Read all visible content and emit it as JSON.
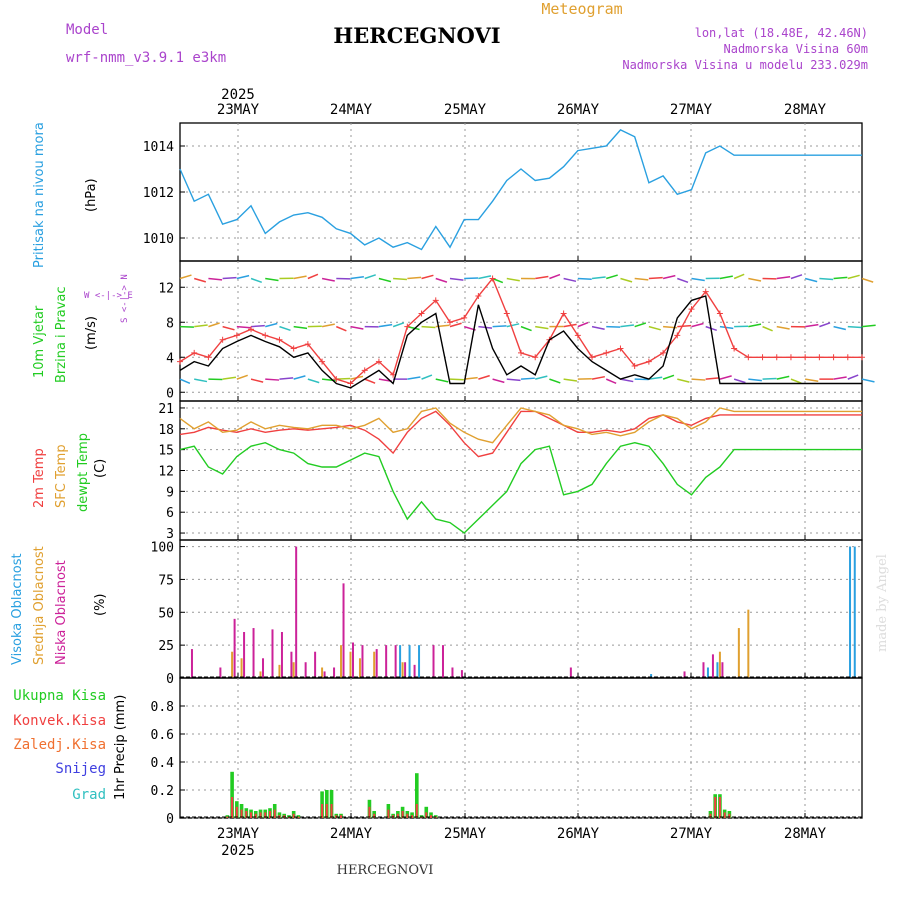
{
  "header": {
    "model_label": "Model",
    "model_name": "wrf-nmm_v3.9.1 e3km",
    "title": "HERCEGNOVI",
    "subtitle": "Meteogram",
    "lonlat": "lon,lat (18.48E, 42.46N)",
    "elevation": "Nadmorska Visina 60m",
    "model_elevation": "Nadmorska Visina u modelu 233.029m",
    "footer_title": "HERCEGNOVI",
    "watermark": "made by Angel"
  },
  "time_axis": {
    "year": "2025",
    "days": [
      "23MAY",
      "24MAY",
      "25MAY",
      "26MAY",
      "27MAY",
      "28MAY"
    ],
    "start_hour": 0,
    "end_hour": 144
  },
  "colors": {
    "pressure": "#2aa0e0",
    "wind_speed": "#f04040",
    "wind_gust": "#000000",
    "temp2m": "#f04040",
    "sfc_temp": "#e0a030",
    "dewpt": "#22cc22",
    "high_cloud": "#2aa0e0",
    "mid_cloud": "#e0a030",
    "low_cloud": "#cc2299",
    "total_precip": "#22cc22",
    "conv_precip": "#f04040",
    "frozen_precip": "#f07030",
    "snow": "#4040e0",
    "hail": "#30c0c0",
    "purple_text": "#aa44cc"
  },
  "chart_data": [
    {
      "type": "line",
      "id": "pressure",
      "label_left": "Pritisak na nivou mora",
      "unit": "(hPa)",
      "ylim": [
        1009,
        1015
      ],
      "yticks": [
        "1010",
        "1012",
        "1014"
      ],
      "x": [
        0,
        3,
        6,
        9,
        12,
        15,
        18,
        21,
        24,
        27,
        30,
        33,
        36,
        39,
        42,
        45,
        48,
        51,
        54,
        57,
        60,
        63,
        66,
        69,
        72,
        75,
        78,
        81,
        84,
        87,
        90,
        93,
        96,
        99,
        102,
        105,
        108,
        111,
        114,
        117,
        120,
        123,
        126,
        129,
        132,
        135,
        138,
        141,
        144
      ],
      "series": [
        {
          "name": "Pressure",
          "values": [
            1013.0,
            1011.6,
            1011.9,
            1010.6,
            1010.8,
            1011.4,
            1010.2,
            1010.7,
            1011.0,
            1011.1,
            1010.9,
            1010.4,
            1010.2,
            1009.7,
            1010.0,
            1009.6,
            1009.8,
            1009.5,
            1010.5,
            1009.6,
            1010.8,
            1010.8,
            1011.6,
            1012.5,
            1013.0,
            1012.5,
            1012.6,
            1013.1,
            1013.8,
            1013.9,
            1014.0,
            1014.7,
            1014.4,
            1012.4,
            1012.7,
            1011.9,
            1012.1,
            1013.7,
            1014.0,
            1013.6,
            1013.6,
            1013.6,
            1013.6,
            1013.6,
            1013.6,
            1013.6,
            1013.6,
            1013.6,
            1013.6
          ]
        }
      ]
    },
    {
      "type": "line",
      "id": "wind",
      "label_left": "10m Vjetar",
      "label_left2": "Brzina i Pravac",
      "unit": "(m/s)",
      "compass": "W <-|-> E",
      "compass_ns": "S <-|-> N",
      "ylim": [
        -1,
        15
      ],
      "yticks": [
        "0",
        "4",
        "8",
        "12"
      ],
      "x": [
        0,
        3,
        6,
        9,
        12,
        15,
        18,
        21,
        24,
        27,
        30,
        33,
        36,
        39,
        42,
        45,
        48,
        51,
        54,
        57,
        60,
        63,
        66,
        69,
        72,
        75,
        78,
        81,
        84,
        87,
        90,
        93,
        96,
        99,
        102,
        105,
        108,
        111,
        114,
        117,
        120,
        123,
        126,
        129,
        132,
        135,
        138,
        141,
        144
      ],
      "series": [
        {
          "name": "Wind speed",
          "values": [
            3.5,
            4.5,
            4.0,
            6.0,
            6.5,
            7.2,
            6.5,
            6.0,
            5.0,
            5.5,
            3.5,
            1.5,
            1.0,
            2.5,
            3.5,
            2.0,
            7.5,
            9.0,
            10.5,
            8.0,
            8.5,
            11.0,
            13.0,
            9.0,
            4.5,
            4.0,
            6.0,
            9.0,
            6.5,
            4.0,
            4.5,
            5.0,
            3.0,
            3.5,
            4.5,
            6.5,
            9.5,
            11.5,
            9.0,
            5.0,
            4.0,
            4.0,
            4.0,
            4.0,
            4.0,
            4.0,
            4.0,
            4.0,
            4.0
          ]
        },
        {
          "name": "Gust",
          "values": [
            2.5,
            3.5,
            3.0,
            5.0,
            5.8,
            6.5,
            5.8,
            5.2,
            4.0,
            4.5,
            2.5,
            1.0,
            0.5,
            1.5,
            2.5,
            1.0,
            6.5,
            8.0,
            9.0,
            1.0,
            1.0,
            10.0,
            5.0,
            2.0,
            3.0,
            2.0,
            6.0,
            7.0,
            5.0,
            3.5,
            2.5,
            1.5,
            2.0,
            1.5,
            3.0,
            8.5,
            10.5,
            11.0,
            1.0,
            1.0,
            1.0,
            1.0,
            1.0,
            1.0,
            1.0,
            1.0,
            1.0,
            1.0,
            1.0
          ]
        }
      ]
    },
    {
      "type": "line",
      "id": "temperature",
      "label_left": "2m Temp",
      "label_left2": "SFC Temp",
      "label_left3": "dewpt Temp",
      "unit": "(C)",
      "ylim": [
        2,
        22
      ],
      "yticks": [
        "3",
        "6",
        "9",
        "12",
        "15",
        "18",
        "21"
      ],
      "x": [
        0,
        3,
        6,
        9,
        12,
        15,
        18,
        21,
        24,
        27,
        30,
        33,
        36,
        39,
        42,
        45,
        48,
        51,
        54,
        57,
        60,
        63,
        66,
        69,
        72,
        75,
        78,
        81,
        84,
        87,
        90,
        93,
        96,
        99,
        102,
        105,
        108,
        111,
        114,
        117,
        120,
        123,
        126,
        129,
        132,
        135,
        138,
        141,
        144
      ],
      "series": [
        {
          "name": "2m Temp",
          "values": [
            17.2,
            17.5,
            18.2,
            17.8,
            17.5,
            18.0,
            17.5,
            17.8,
            18.0,
            17.8,
            18.0,
            18.2,
            18.5,
            17.8,
            16.5,
            14.5,
            17.5,
            19.5,
            20.5,
            18.5,
            16.0,
            14.0,
            14.5,
            17.5,
            20.5,
            20.5,
            19.5,
            18.5,
            17.5,
            17.5,
            17.8,
            17.5,
            18.0,
            19.5,
            20.0,
            19.0,
            18.5,
            19.5,
            20.0,
            20.0,
            20.0,
            20.0,
            20.0,
            20.0,
            20.0,
            20.0,
            20.0,
            20.0,
            20.0
          ]
        },
        {
          "name": "SFC Temp",
          "values": [
            19.5,
            18.0,
            19.0,
            17.5,
            17.8,
            19.0,
            18.0,
            18.5,
            18.2,
            18.0,
            18.5,
            18.5,
            18.0,
            18.5,
            19.5,
            17.5,
            18.0,
            20.5,
            21.0,
            18.8,
            17.5,
            16.5,
            16.0,
            18.5,
            21.0,
            20.5,
            20.0,
            18.5,
            18.0,
            17.2,
            17.5,
            17.0,
            17.5,
            19.0,
            20.0,
            19.5,
            18.0,
            19.0,
            21.0,
            20.5,
            20.5,
            20.5,
            20.5,
            20.5,
            20.5,
            20.5,
            20.5,
            20.5,
            20.5
          ]
        },
        {
          "name": "Dewpt Temp",
          "values": [
            15.0,
            15.5,
            12.5,
            11.5,
            14.0,
            15.5,
            16.0,
            15.0,
            14.5,
            13.0,
            12.5,
            12.5,
            13.5,
            14.5,
            14.0,
            9.0,
            5.0,
            7.5,
            5.0,
            4.5,
            3.0,
            5.0,
            7.0,
            9.0,
            13.0,
            15.0,
            15.5,
            8.5,
            9.0,
            10.0,
            13.0,
            15.5,
            16.0,
            15.5,
            13.0,
            10.0,
            8.5,
            11.0,
            12.5,
            15.0,
            15.0,
            15.0,
            15.0,
            15.0,
            15.0,
            15.0,
            15.0,
            15.0,
            15.0
          ]
        }
      ]
    },
    {
      "type": "bar",
      "id": "cloud",
      "label_left": "Visoka Oblacnost",
      "label_left2": "Srednja Oblacnost",
      "label_left3": "Niska Oblacnost",
      "unit": "(%)",
      "ylim": [
        0,
        105
      ],
      "yticks": [
        "0",
        "25",
        "50",
        "75",
        "100"
      ],
      "x": [
        2,
        6,
        8,
        11,
        13,
        15,
        17,
        19,
        21,
        23,
        24,
        26,
        28,
        30,
        32,
        34,
        36,
        38,
        41,
        43,
        45,
        47,
        49,
        51,
        53,
        55,
        57,
        59,
        61,
        63,
        66,
        69,
        72,
        76,
        79,
        82,
        85,
        88,
        91,
        94,
        97,
        100,
        103,
        106,
        108,
        110,
        112,
        114,
        116,
        118,
        120,
        122,
        124,
        126,
        128,
        130,
        132,
        134,
        136,
        138,
        140,
        142,
        143
      ],
      "series": [
        {
          "name": "Visoka Oblacnost",
          "values": [
            0,
            0,
            0,
            0,
            0,
            0,
            0,
            0,
            0,
            0,
            0,
            0,
            0,
            0,
            0,
            0,
            0,
            0,
            0,
            0,
            0,
            25,
            25,
            25,
            0,
            0,
            0,
            0,
            0,
            0,
            0,
            0,
            0,
            0,
            0,
            0,
            0,
            0,
            0,
            0,
            0,
            3,
            0,
            0,
            0,
            0,
            8,
            12,
            0,
            0,
            0,
            0,
            0,
            0,
            0,
            0,
            0,
            0,
            0,
            0,
            0,
            100,
            100
          ]
        },
        {
          "name": "Srednja Oblacnost",
          "values": [
            0,
            0,
            0,
            20,
            15,
            0,
            5,
            0,
            10,
            0,
            12,
            0,
            0,
            8,
            0,
            25,
            20,
            15,
            20,
            0,
            0,
            12,
            0,
            0,
            0,
            0,
            0,
            0,
            0,
            0,
            0,
            0,
            0,
            0,
            0,
            0,
            0,
            0,
            0,
            0,
            0,
            0,
            0,
            0,
            0,
            0,
            0,
            20,
            0,
            38,
            52,
            0,
            0,
            0,
            0,
            0,
            0,
            0,
            0,
            0,
            0,
            0,
            0
          ]
        },
        {
          "name": "Niska Oblacnost",
          "values": [
            22,
            0,
            8,
            45,
            35,
            38,
            15,
            37,
            35,
            20,
            100,
            12,
            20,
            5,
            8,
            72,
            27,
            25,
            22,
            25,
            25,
            12,
            10,
            0,
            25,
            25,
            8,
            6,
            0,
            0,
            0,
            0,
            0,
            0,
            0,
            8,
            0,
            0,
            0,
            0,
            0,
            0,
            0,
            5,
            0,
            12,
            18,
            12,
            0,
            0,
            0,
            0,
            0,
            0,
            0,
            0,
            0,
            0,
            0,
            0,
            0,
            0,
            0
          ]
        }
      ]
    },
    {
      "type": "bar",
      "id": "precip",
      "label_left": "1hr Precip (mm)",
      "legend": [
        "Ukupna Kisa",
        "Konvek.Kisa",
        "Zaledj.Kisa",
        "Snijeg",
        "Grad"
      ],
      "ylim": [
        0,
        1.0
      ],
      "yticks": [
        "0",
        "0.2",
        "0.4",
        "0.6",
        "0.8"
      ],
      "x": [
        10,
        11,
        12,
        13,
        14,
        15,
        16,
        17,
        18,
        19,
        20,
        21,
        22,
        23,
        24,
        25,
        30,
        31,
        32,
        33,
        34,
        40,
        41,
        44,
        45,
        46,
        47,
        48,
        49,
        50,
        51,
        52,
        53,
        54,
        112,
        113,
        114,
        115,
        116
      ],
      "series": [
        {
          "name": "Ukupna Kisa",
          "values": [
            0.02,
            0.33,
            0.12,
            0.1,
            0.07,
            0.06,
            0.05,
            0.06,
            0.06,
            0.07,
            0.1,
            0.04,
            0.03,
            0.02,
            0.05,
            0.02,
            0.19,
            0.2,
            0.2,
            0.03,
            0.03,
            0.13,
            0.05,
            0.1,
            0.03,
            0.05,
            0.08,
            0.05,
            0.04,
            0.32,
            0.02,
            0.08,
            0.04,
            0.02,
            0.05,
            0.17,
            0.17,
            0.06,
            0.05
          ]
        },
        {
          "name": "Konvek.Kisa",
          "values": [
            0.01,
            0.15,
            0.08,
            0.06,
            0.05,
            0.04,
            0.03,
            0.04,
            0.04,
            0.05,
            0.06,
            0.02,
            0.02,
            0.01,
            0.03,
            0.01,
            0.1,
            0.1,
            0.1,
            0.02,
            0.02,
            0.08,
            0.03,
            0.06,
            0.02,
            0.03,
            0.05,
            0.03,
            0.02,
            0.1,
            0.01,
            0.04,
            0.02,
            0.01,
            0.03,
            0.15,
            0.15,
            0.04,
            0.03
          ]
        }
      ]
    }
  ]
}
